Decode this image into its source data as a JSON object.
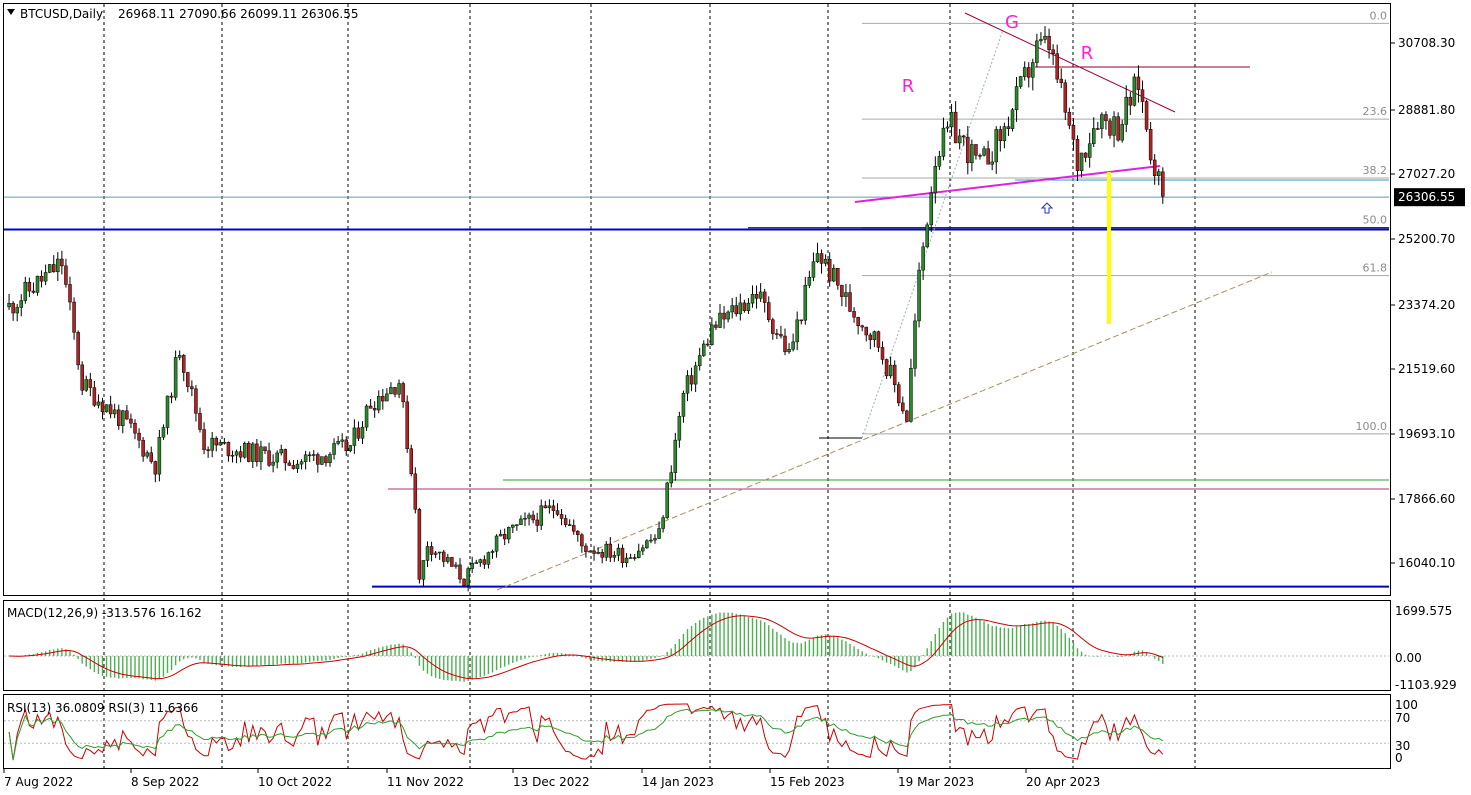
{
  "header": {
    "symbol_label": "BTCUSD,Daily",
    "ohlc": "26968.11 27090.66 26099.11 26306.55"
  },
  "colors": {
    "up_candle": "#2a8a2a",
    "down_candle": "#b22222",
    "support_line": "#0000cc",
    "neckline": "#e020e0",
    "trendline": "#a00040",
    "target_bar": "#ffff00",
    "marker_text": "#ff1fd0",
    "price_tag_bg": "#000000",
    "macd_hist": "#4caf50",
    "macd_signal": "#cc0000",
    "rsi_fast": "#cc0000",
    "rsi_slow": "#2aa02a"
  },
  "main_axis": {
    "ticks": [
      "30708.30",
      "28881.80",
      "27027.20",
      "25200.70",
      "23374.20",
      "21519.60",
      "19693.10",
      "17866.60",
      "16040.10"
    ],
    "current_price": "26306.55"
  },
  "fib_labels": [
    "0.0",
    "23.6",
    "38.2",
    "50.0",
    "61.8",
    "100.0"
  ],
  "pattern_marks": [
    "R",
    "G",
    "R"
  ],
  "macd": {
    "label": "MACD(12,26,9) -313.576 16.162",
    "ticks": [
      "1699.575",
      "0.00",
      "-1103.929"
    ]
  },
  "rsi": {
    "label": "RSI(13) 36.0809  RSI(3) 11.6366",
    "ticks": [
      "100",
      "70",
      "30",
      "0"
    ]
  },
  "x_axis": [
    "7 Aug 2022",
    "8 Sep 2022",
    "10 Oct 2022",
    "11 Nov 2022",
    "13 Dec 2022",
    "14 Jan 2023",
    "15 Feb 2023",
    "19 Mar 2023",
    "20 Apr 2023"
  ],
  "chart_data": {
    "type": "candlestick",
    "symbol": "BTCUSD",
    "timeframe": "Daily",
    "y_range": [
      15500,
      31500
    ],
    "anchors": [
      {
        "date": "2022-08-01",
        "close": 23300
      },
      {
        "date": "2022-08-14",
        "close": 24500
      },
      {
        "date": "2022-08-19",
        "close": 21200
      },
      {
        "date": "2022-08-30",
        "close": 20100
      },
      {
        "date": "2022-09-06",
        "close": 19000
      },
      {
        "date": "2022-09-12",
        "close": 22200
      },
      {
        "date": "2022-09-18",
        "close": 19600
      },
      {
        "date": "2022-10-01",
        "close": 19300
      },
      {
        "date": "2022-10-11",
        "close": 19100
      },
      {
        "date": "2022-10-24",
        "close": 19500
      },
      {
        "date": "2022-10-29",
        "close": 20700
      },
      {
        "date": "2022-11-05",
        "close": 21300
      },
      {
        "date": "2022-11-09",
        "close": 18000
      },
      {
        "date": "2022-11-10",
        "close": 15800
      },
      {
        "date": "2022-11-12",
        "close": 16900
      },
      {
        "date": "2022-11-21",
        "close": 15900
      },
      {
        "date": "2022-12-01",
        "close": 17100
      },
      {
        "date": "2022-12-14",
        "close": 17900
      },
      {
        "date": "2022-12-20",
        "close": 16800
      },
      {
        "date": "2022-12-31",
        "close": 16550
      },
      {
        "date": "2023-01-08",
        "close": 17100
      },
      {
        "date": "2023-01-14",
        "close": 20900
      },
      {
        "date": "2023-01-21",
        "close": 22700
      },
      {
        "date": "2023-02-01",
        "close": 23700
      },
      {
        "date": "2023-02-09",
        "close": 22000
      },
      {
        "date": "2023-02-16",
        "close": 24800
      },
      {
        "date": "2023-02-24",
        "close": 23300
      },
      {
        "date": "2023-03-03",
        "close": 22300
      },
      {
        "date": "2023-03-10",
        "close": 20300
      },
      {
        "date": "2023-03-13",
        "close": 24100
      },
      {
        "date": "2023-03-17",
        "close": 27400
      },
      {
        "date": "2023-03-21",
        "close": 28200
      },
      {
        "date": "2023-03-28",
        "close": 27100
      },
      {
        "date": "2023-04-03",
        "close": 28100
      },
      {
        "date": "2023-04-11",
        "close": 30300
      },
      {
        "date": "2023-04-14",
        "close": 30400
      },
      {
        "date": "2023-04-21",
        "close": 27200
      },
      {
        "date": "2023-04-26",
        "close": 28500
      },
      {
        "date": "2023-05-01",
        "close": 28200
      },
      {
        "date": "2023-05-06",
        "close": 29400
      },
      {
        "date": "2023-05-09",
        "close": 27600
      },
      {
        "date": "2023-05-12",
        "close": 26306.55
      }
    ],
    "last_bar": {
      "open": 26968.11,
      "high": 27090.66,
      "low": 26099.11,
      "close": 26306.55
    },
    "fibonacci": [
      {
        "level": "0.0",
        "price": 31000
      },
      {
        "level": "23.6",
        "price": 28400
      },
      {
        "level": "38.2",
        "price": 26800
      },
      {
        "level": "50.0",
        "price": 25450
      },
      {
        "level": "61.8",
        "price": 24150
      },
      {
        "level": "100.0",
        "price": 19850
      }
    ],
    "support_levels": [
      25400,
      15700
    ],
    "indicators": [
      "MACD(12,26,9)",
      "RSI(13)",
      "RSI(3)"
    ]
  }
}
